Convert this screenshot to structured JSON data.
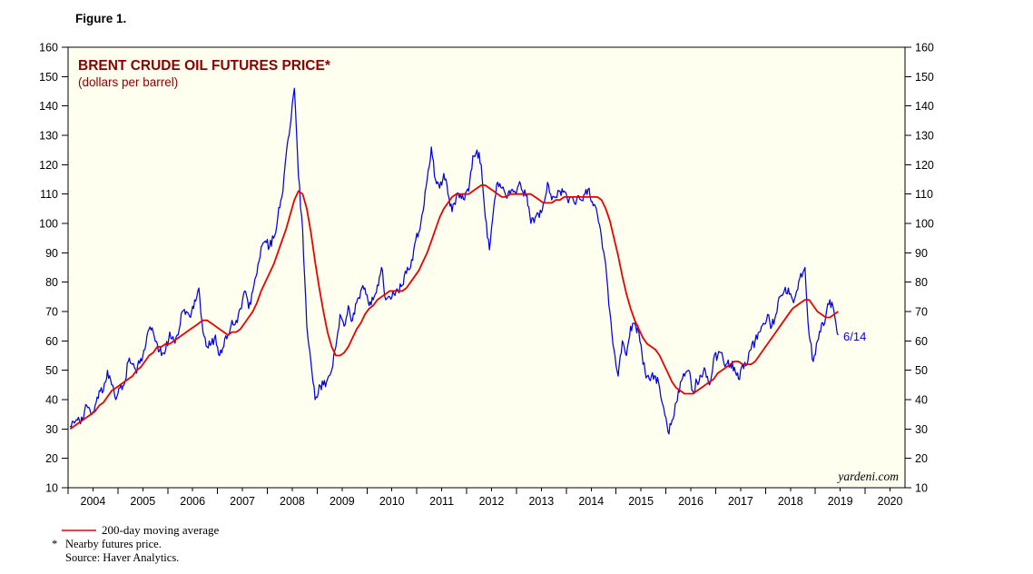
{
  "figure_label": "Figure 1.",
  "colors": {
    "blue": "#0000EE",
    "red": "#EC0000",
    "maroon": "#8B0000",
    "axis": "#000000",
    "plot_bg": "#FFFFF0"
  },
  "chart_data": {
    "type": "line",
    "title": "BRENT CRUDE OIL FUTURES PRICE*",
    "subtitle": "(dollars per barrel)",
    "ylim": [
      10,
      160
    ],
    "ytick_step": 10,
    "y_axis_sides": "both",
    "grid": false,
    "x_axis_start": 2004,
    "x_axis_end": 2020.8,
    "x_tick_years": [
      2004,
      2005,
      2006,
      2007,
      2008,
      2009,
      2010,
      2011,
      2012,
      2013,
      2014,
      2015,
      2016,
      2017,
      2018,
      2019,
      2020
    ],
    "annotation": "6/14",
    "watermark": "yardeni.com",
    "legend_position": "below-left",
    "series": [
      {
        "name": "Nearby futures price",
        "color": "#0000EE",
        "start": "2004-01",
        "frequency": "monthly",
        "values": [
          31,
          32,
          34,
          33,
          38,
          35,
          38,
          43,
          43,
          50,
          45,
          40,
          44,
          45,
          53,
          52,
          49,
          54,
          57,
          64,
          63,
          59,
          55,
          57,
          63,
          60,
          62,
          70,
          70,
          68,
          74,
          78,
          63,
          58,
          59,
          62,
          55,
          58,
          62,
          67,
          67,
          71,
          77,
          71,
          77,
          83,
          92,
          94,
          92,
          95,
          102,
          109,
          123,
          133,
          146,
          116,
          98,
          65,
          53,
          40,
          45,
          45,
          47,
          50,
          58,
          69,
          65,
          72,
          67,
          73,
          77,
          78,
          72,
          74,
          79,
          85,
          74,
          75,
          76,
          77,
          79,
          83,
          85,
          93,
          97,
          104,
          115,
          126,
          115,
          112,
          117,
          110,
          104,
          109,
          110,
          108,
          111,
          123,
          125,
          120,
          102,
          91,
          105,
          114,
          112,
          109,
          110,
          111,
          113,
          111,
          110,
          100,
          102,
          102,
          107,
          114,
          108,
          109,
          111,
          111,
          107,
          109,
          108,
          108,
          110,
          112,
          106,
          103,
          95,
          86,
          70,
          57,
          48,
          60,
          55,
          65,
          66,
          63,
          52,
          48,
          48,
          48,
          44,
          37,
          29,
          33,
          39,
          46,
          48,
          50,
          43,
          46,
          48,
          50,
          45,
          54,
          55,
          56,
          52,
          52,
          51,
          47,
          52,
          52,
          57,
          60,
          63,
          66,
          69,
          65,
          69,
          75,
          77,
          78,
          74,
          77,
          83,
          85,
          62,
          53,
          60,
          66,
          68,
          74,
          70,
          62
        ]
      },
      {
        "name": "200-day moving average",
        "color": "#EC0000",
        "start": "2004-01",
        "frequency": "monthly",
        "values": [
          30,
          31,
          32,
          33,
          34,
          35,
          36,
          38,
          39,
          41,
          43,
          44,
          45,
          46,
          47,
          48,
          50,
          51,
          53,
          55,
          56,
          58,
          58,
          59,
          59,
          60,
          61,
          62,
          63,
          64,
          65,
          66,
          67,
          67,
          66,
          65,
          64,
          63,
          62,
          63,
          63,
          64,
          66,
          68,
          70,
          73,
          77,
          80,
          83,
          86,
          90,
          94,
          98,
          103,
          108,
          111,
          110,
          105,
          97,
          87,
          78,
          70,
          63,
          58,
          55,
          55,
          56,
          58,
          61,
          64,
          66,
          69,
          71,
          72,
          74,
          75,
          76,
          77,
          77,
          77,
          77,
          78,
          80,
          82,
          84,
          87,
          90,
          94,
          98,
          102,
          105,
          107,
          109,
          110,
          110,
          110,
          110,
          111,
          112,
          113,
          113,
          112,
          111,
          110,
          109,
          109,
          110,
          110,
          110,
          110,
          110,
          110,
          109,
          108,
          107,
          107,
          107,
          108,
          108,
          109,
          109,
          109,
          109,
          109,
          109,
          109,
          109,
          109,
          108,
          105,
          101,
          95,
          89,
          82,
          76,
          71,
          67,
          64,
          61,
          59,
          58,
          57,
          55,
          52,
          49,
          46,
          44,
          43,
          42,
          42,
          42,
          43,
          44,
          45,
          46,
          47,
          49,
          50,
          51,
          52,
          53,
          53,
          52,
          52,
          52,
          53,
          55,
          57,
          59,
          61,
          63,
          65,
          67,
          69,
          71,
          72,
          73,
          74,
          74,
          72,
          70,
          69,
          68,
          68,
          69,
          70
        ]
      }
    ]
  },
  "legend": {
    "ma_label": "200-day moving average"
  },
  "footnotes": {
    "marker": "*",
    "note": "Nearby futures price.",
    "source": "Source: Haver Analytics."
  }
}
